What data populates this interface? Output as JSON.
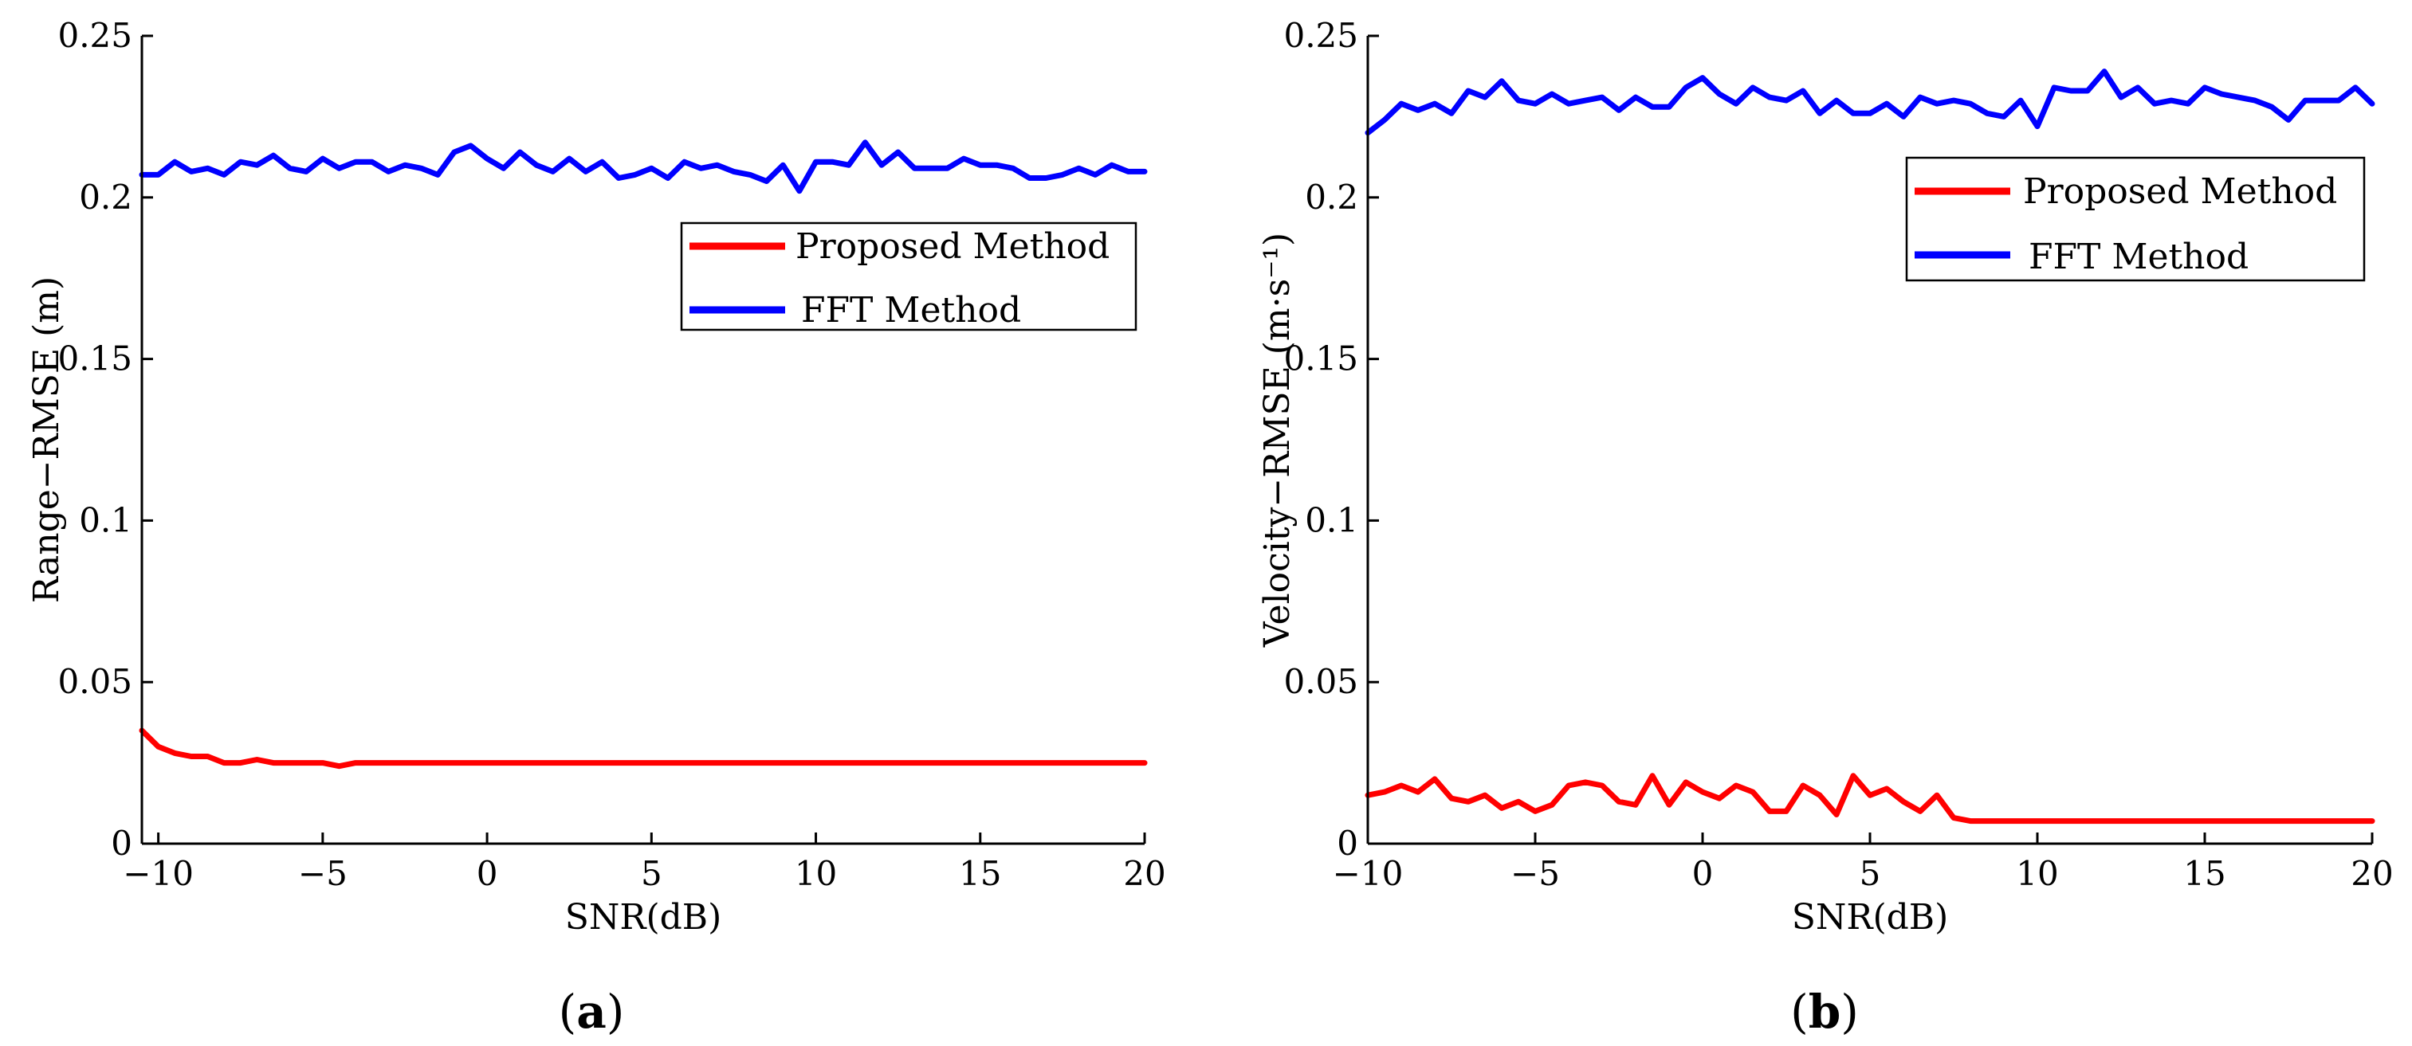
{
  "chart_data": [
    {
      "type": "line",
      "panel_label": "a",
      "title": "",
      "xlabel": "SNR(dB)",
      "ylabel": "Range−RMSE (m)",
      "xlim": [
        -10.5,
        20
      ],
      "ylim": [
        0,
        0.25
      ],
      "xticks": [
        -10,
        -5,
        0,
        5,
        10,
        15,
        20
      ],
      "xtick_labels": [
        "−10",
        "−5",
        "0",
        "5",
        "10",
        "15",
        "20"
      ],
      "yticks": [
        0,
        0.05,
        0.1,
        0.15,
        0.2,
        0.25
      ],
      "ytick_labels": [
        "0",
        "0.05",
        "0.1",
        "0.15",
        "0.2",
        "0.25"
      ],
      "grid": false,
      "legend_position": "upper-right",
      "x": [
        -10.5,
        -10,
        -9.5,
        -9,
        -8.5,
        -8,
        -7.5,
        -7,
        -6.5,
        -6,
        -5.5,
        -5,
        -4.5,
        -4,
        -3.5,
        -3,
        -2.5,
        -2,
        -1.5,
        -1,
        -0.5,
        0,
        0.5,
        1,
        1.5,
        2,
        2.5,
        3,
        3.5,
        4,
        4.5,
        5,
        5.5,
        6,
        6.5,
        7,
        7.5,
        8,
        8.5,
        9,
        9.5,
        10,
        10.5,
        11,
        11.5,
        12,
        12.5,
        13,
        13.5,
        14,
        14.5,
        15,
        15.5,
        16,
        16.5,
        17,
        17.5,
        18,
        18.5,
        19,
        19.5,
        20
      ],
      "series": [
        {
          "name": "Proposed Method",
          "color": "#ff0000",
          "values": [
            0.035,
            0.03,
            0.028,
            0.027,
            0.027,
            0.025,
            0.025,
            0.026,
            0.025,
            0.025,
            0.025,
            0.025,
            0.024,
            0.025,
            0.025,
            0.025,
            0.025,
            0.025,
            0.025,
            0.025,
            0.025,
            0.025,
            0.025,
            0.025,
            0.025,
            0.025,
            0.025,
            0.025,
            0.025,
            0.025,
            0.025,
            0.025,
            0.025,
            0.025,
            0.025,
            0.025,
            0.025,
            0.025,
            0.025,
            0.025,
            0.025,
            0.025,
            0.025,
            0.025,
            0.025,
            0.025,
            0.025,
            0.025,
            0.025,
            0.025,
            0.025,
            0.025,
            0.025,
            0.025,
            0.025,
            0.025,
            0.025,
            0.025,
            0.025,
            0.025,
            0.025,
            0.025
          ]
        },
        {
          "name": "FFT Method",
          "color": "#0000ff",
          "values": [
            0.207,
            0.207,
            0.211,
            0.208,
            0.209,
            0.207,
            0.211,
            0.21,
            0.213,
            0.209,
            0.208,
            0.212,
            0.209,
            0.211,
            0.211,
            0.208,
            0.21,
            0.209,
            0.207,
            0.214,
            0.216,
            0.212,
            0.209,
            0.214,
            0.21,
            0.208,
            0.212,
            0.208,
            0.211,
            0.206,
            0.207,
            0.209,
            0.206,
            0.211,
            0.209,
            0.21,
            0.208,
            0.207,
            0.205,
            0.21,
            0.202,
            0.211,
            0.211,
            0.21,
            0.217,
            0.21,
            0.214,
            0.209,
            0.209,
            0.209,
            0.212,
            0.21,
            0.21,
            0.209,
            0.206,
            0.206,
            0.207,
            0.209,
            0.207,
            0.21,
            0.208,
            0.208
          ]
        }
      ]
    },
    {
      "type": "line",
      "panel_label": "b",
      "title": "",
      "xlabel": "SNR(dB)",
      "ylabel": "Velocity−RMSE (m·s⁻¹)",
      "xlim": [
        -10,
        20
      ],
      "ylim": [
        0,
        0.25
      ],
      "xticks": [
        -10,
        -5,
        0,
        5,
        10,
        15,
        20
      ],
      "xtick_labels": [
        "−10",
        "−5",
        "0",
        "5",
        "10",
        "15",
        "20"
      ],
      "yticks": [
        0,
        0.05,
        0.1,
        0.15,
        0.2,
        0.25
      ],
      "ytick_labels": [
        "0",
        "0.05",
        "0.1",
        "0.15",
        "0.2",
        "0.25"
      ],
      "grid": false,
      "legend_position": "upper-right",
      "x": [
        -10,
        -9.5,
        -9,
        -8.5,
        -8,
        -7.5,
        -7,
        -6.5,
        -6,
        -5.5,
        -5,
        -4.5,
        -4,
        -3.5,
        -3,
        -2.5,
        -2,
        -1.5,
        -1,
        -0.5,
        0,
        0.5,
        1,
        1.5,
        2,
        2.5,
        3,
        3.5,
        4,
        4.5,
        5,
        5.5,
        6,
        6.5,
        7,
        7.5,
        8,
        8.5,
        9,
        9.5,
        10,
        10.5,
        11,
        11.5,
        12,
        12.5,
        13,
        13.5,
        14,
        14.5,
        15,
        15.5,
        16,
        16.5,
        17,
        17.5,
        18,
        18.5,
        19,
        19.5,
        20
      ],
      "series": [
        {
          "name": "Proposed Method",
          "color": "#ff0000",
          "values": [
            0.015,
            0.016,
            0.018,
            0.016,
            0.02,
            0.014,
            0.013,
            0.015,
            0.011,
            0.013,
            0.01,
            0.012,
            0.018,
            0.019,
            0.018,
            0.013,
            0.012,
            0.021,
            0.012,
            0.019,
            0.016,
            0.014,
            0.018,
            0.016,
            0.01,
            0.01,
            0.018,
            0.015,
            0.009,
            0.021,
            0.015,
            0.017,
            0.013,
            0.01,
            0.015,
            0.008,
            0.007,
            0.007,
            0.007,
            0.007,
            0.007,
            0.007,
            0.007,
            0.007,
            0.007,
            0.007,
            0.007,
            0.007,
            0.007,
            0.007,
            0.007,
            0.007,
            0.007,
            0.007,
            0.007,
            0.007,
            0.007,
            0.007,
            0.007,
            0.007,
            0.007
          ]
        },
        {
          "name": "FFT Method",
          "color": "#0000ff",
          "values": [
            0.22,
            0.224,
            0.229,
            0.227,
            0.229,
            0.226,
            0.233,
            0.231,
            0.236,
            0.23,
            0.229,
            0.232,
            0.229,
            0.23,
            0.231,
            0.227,
            0.231,
            0.228,
            0.228,
            0.234,
            0.237,
            0.232,
            0.229,
            0.234,
            0.231,
            0.23,
            0.233,
            0.226,
            0.23,
            0.226,
            0.226,
            0.229,
            0.225,
            0.231,
            0.229,
            0.23,
            0.229,
            0.226,
            0.225,
            0.23,
            0.222,
            0.234,
            0.233,
            0.233,
            0.239,
            0.231,
            0.234,
            0.229,
            0.23,
            0.229,
            0.234,
            0.232,
            0.231,
            0.23,
            0.228,
            0.224,
            0.23,
            0.23,
            0.23,
            0.234,
            0.229
          ]
        }
      ]
    }
  ]
}
